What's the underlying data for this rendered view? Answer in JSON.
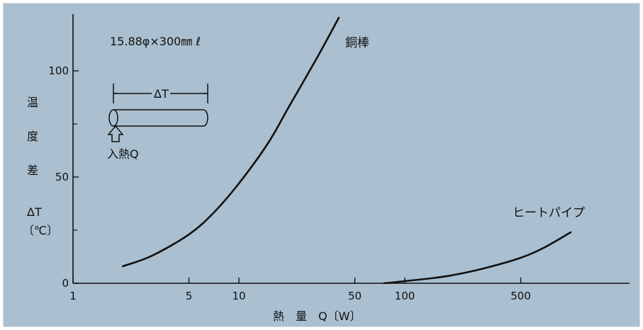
{
  "chart_data": {
    "type": "line",
    "x_scale": "log",
    "xlim": [
      1,
      1000
    ],
    "ylim": [
      0,
      125
    ],
    "x_ticks": [
      1,
      5,
      10,
      50,
      100,
      500
    ],
    "x_tick_labels": [
      "1",
      "5",
      "10",
      "50",
      "100",
      "500"
    ],
    "y_ticks": [
      0,
      50,
      100
    ],
    "y_tick_labels": [
      "0",
      "50",
      "100"
    ],
    "xlabel": "熱　量　Q〔W〕",
    "ylabel_lines": [
      "温",
      "度",
      "差",
      "ΔT",
      "〔℃〕"
    ],
    "grid": false,
    "series": [
      {
        "name": "銅棒",
        "x": [
          2,
          3,
          5,
          7,
          10,
          15,
          20,
          30,
          40
        ],
        "y": [
          8,
          13,
          23,
          33,
          47,
          66,
          83,
          107,
          125
        ]
      },
      {
        "name": "ヒートパイプ",
        "x": [
          75,
          100,
          150,
          200,
          300,
          500,
          700,
          1000
        ],
        "y": [
          0,
          1,
          2.5,
          4,
          7,
          12,
          17,
          24
        ]
      }
    ],
    "annotations": {
      "spec": "15.88φ×300㎜ ℓ",
      "delta_label": "ΔT",
      "heat_input_label": "入熱Q"
    }
  }
}
